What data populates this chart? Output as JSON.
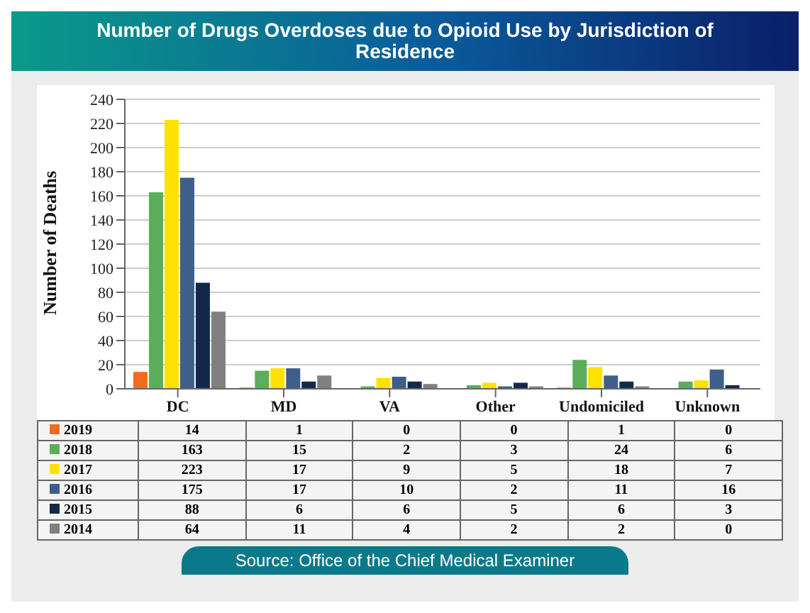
{
  "chart_data": {
    "type": "bar",
    "title": "Number of Drugs Overdoses due to Opioid Use by Jurisdiction of Residence",
    "ylabel": "Number of Deaths",
    "categories": [
      "DC",
      "MD",
      "VA",
      "Other",
      "Undomiciled",
      "Unknown"
    ],
    "series": [
      {
        "name": "2019",
        "color": "#f26b1d",
        "values": [
          14,
          1,
          0,
          0,
          1,
          0
        ]
      },
      {
        "name": "2018",
        "color": "#5cad5c",
        "values": [
          163,
          15,
          2,
          3,
          24,
          6
        ]
      },
      {
        "name": "2017",
        "color": "#ffe100",
        "values": [
          223,
          17,
          9,
          5,
          18,
          7
        ]
      },
      {
        "name": "2016",
        "color": "#3e5f8a",
        "values": [
          175,
          17,
          10,
          2,
          11,
          16
        ]
      },
      {
        "name": "2015",
        "color": "#13294b",
        "values": [
          88,
          6,
          6,
          5,
          6,
          3
        ]
      },
      {
        "name": "2014",
        "color": "#808080",
        "values": [
          64,
          11,
          4,
          2,
          2,
          0
        ]
      }
    ],
    "ylim": [
      0,
      240
    ],
    "yticks": [
      0,
      20,
      40,
      60,
      80,
      100,
      120,
      140,
      160,
      180,
      200,
      220,
      240
    ],
    "grid": "y",
    "legend": "bottom",
    "data_labels": true,
    "annotations": [
      "Source: Office of the Chief Medical Examiner"
    ]
  }
}
